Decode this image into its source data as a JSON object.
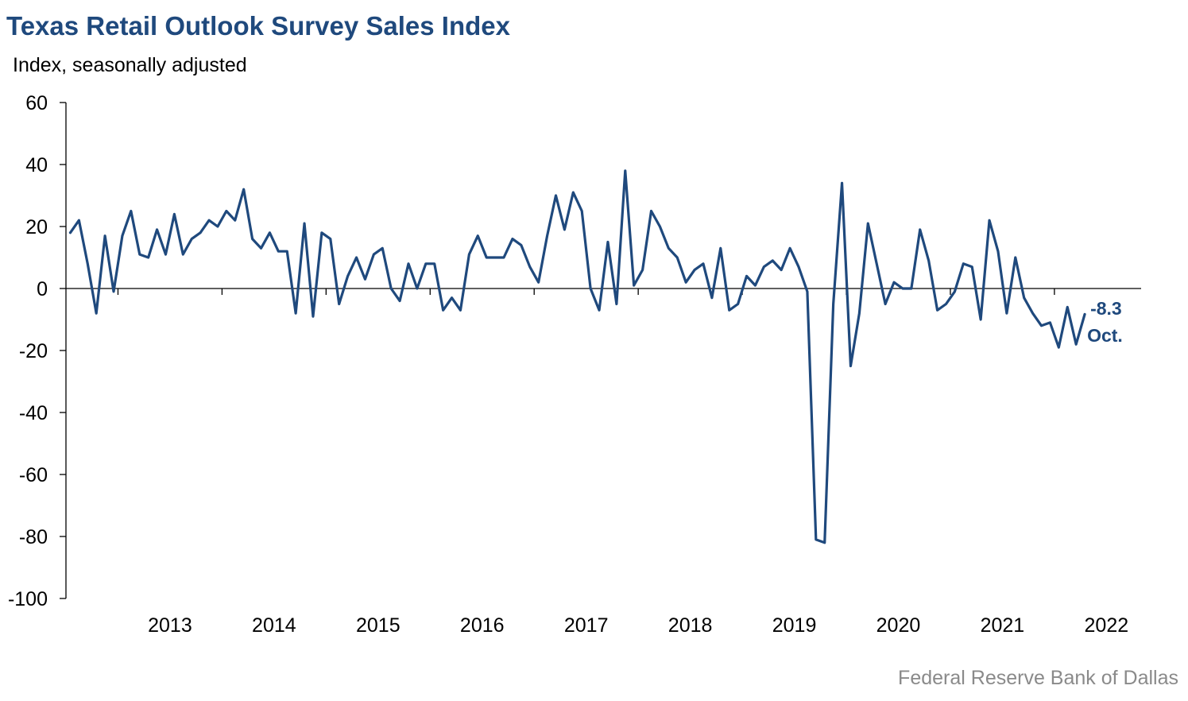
{
  "title": "Texas Retail Outlook Survey Sales Index",
  "subtitle": "Index, seasonally adjusted",
  "source": "Federal Reserve Bank of Dallas",
  "colors": {
    "line": "#1f497d",
    "title": "#1f497d",
    "source": "#8a8a8a",
    "axis": "#000000"
  },
  "chart_data": {
    "type": "line",
    "title": "Texas Retail Outlook Survey Sales Index",
    "ylabel": "Index, seasonally adjusted",
    "ylim": [
      -100,
      60
    ],
    "yticks": [
      60,
      40,
      20,
      0,
      -20,
      -40,
      -60,
      -80,
      -100
    ],
    "xlim": [
      "2012-07",
      "2022-10"
    ],
    "x_tick_labels": [
      "2013",
      "2014",
      "2015",
      "2016",
      "2017",
      "2018",
      "2019",
      "2020",
      "2021",
      "2022"
    ],
    "grid": false,
    "end_annotation": {
      "value": "-8.3",
      "label": "Oct."
    },
    "series": [
      {
        "start": "2012-07",
        "frequency": "monthly",
        "values": [
          18,
          22,
          8,
          -8,
          17,
          -1,
          17,
          25,
          11,
          10,
          19,
          11,
          24,
          11,
          16,
          18,
          22,
          20,
          25,
          22,
          32,
          16,
          13,
          18,
          12,
          12,
          -8,
          21,
          -9,
          18,
          16,
          -5,
          4,
          10,
          3,
          11,
          13,
          0,
          -4,
          8,
          0,
          8,
          8,
          -7,
          -3,
          -7,
          11,
          17,
          10,
          10,
          10,
          16,
          14,
          7,
          2,
          17,
          30,
          19,
          31,
          25,
          0,
          -7,
          15,
          -5,
          38,
          1,
          6,
          25,
          20,
          13,
          10,
          2,
          6,
          8,
          -3,
          13,
          -7,
          -5,
          4,
          1,
          7,
          9,
          6,
          13,
          7,
          -1,
          -81,
          -82,
          -5,
          34,
          -25,
          -8,
          21,
          8,
          -5,
          2,
          0,
          0,
          19,
          9,
          -7,
          -5,
          -1,
          8,
          7,
          -10,
          22,
          12,
          -8,
          10,
          -3,
          -8,
          -12,
          -11,
          -19,
          -6,
          -18,
          -8.3
        ]
      }
    ]
  }
}
